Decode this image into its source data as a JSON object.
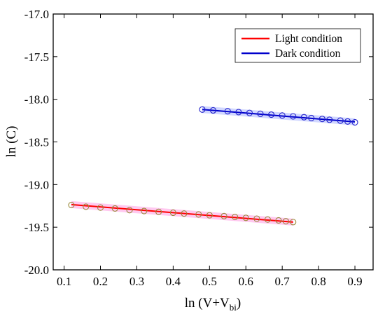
{
  "chart_data": {
    "type": "scatter",
    "title": "",
    "xlabel": "ln (V+V",
    "xlabel_sub": "bi",
    "xlabel_close": ")",
    "ylabel": "ln (C)",
    "xlim": [
      0.07,
      0.95
    ],
    "ylim": [
      -20.0,
      -17.0
    ],
    "xticks": [
      0.1,
      0.2,
      0.3,
      0.4,
      0.5,
      0.6,
      0.7,
      0.8,
      0.9
    ],
    "xtick_labels": [
      "0.1",
      "0.2",
      "0.3",
      "0.4",
      "0.5",
      "0.6",
      "0.7",
      "0.8",
      "0.9"
    ],
    "yticks": [
      -17.0,
      -17.5,
      -18.0,
      -18.5,
      -19.0,
      -19.5,
      -20.0
    ],
    "ytick_labels": [
      "-17.0",
      "-17.5",
      "-18.0",
      "-18.5",
      "-19.0",
      "-19.5",
      "-20.0"
    ],
    "grid": false,
    "legend_position": "top-right",
    "series": [
      {
        "name": "Light condition",
        "line_color": "#ff0000",
        "marker_color": "#9a8a3a",
        "band_color": "#ff88dd",
        "x": [
          0.12,
          0.16,
          0.2,
          0.24,
          0.28,
          0.32,
          0.36,
          0.4,
          0.43,
          0.47,
          0.5,
          0.54,
          0.57,
          0.6,
          0.63,
          0.66,
          0.69,
          0.71,
          0.73
        ],
        "y": [
          -19.24,
          -19.26,
          -19.27,
          -19.28,
          -19.3,
          -19.31,
          -19.32,
          -19.33,
          -19.34,
          -19.35,
          -19.36,
          -19.37,
          -19.38,
          -19.39,
          -19.4,
          -19.41,
          -19.42,
          -19.43,
          -19.44
        ],
        "fit": [
          [
            0.12,
            -19.235
          ],
          [
            0.73,
            -19.44
          ]
        ]
      },
      {
        "name": "Dark condition",
        "line_color": "#0000cc",
        "marker_color": "#2222cc",
        "band_color": "#9aa6ff",
        "x": [
          0.48,
          0.51,
          0.55,
          0.58,
          0.61,
          0.64,
          0.67,
          0.7,
          0.73,
          0.76,
          0.78,
          0.81,
          0.83,
          0.86,
          0.88,
          0.9
        ],
        "y": [
          -18.12,
          -18.13,
          -18.14,
          -18.15,
          -18.16,
          -18.17,
          -18.18,
          -18.19,
          -18.2,
          -18.21,
          -18.22,
          -18.23,
          -18.24,
          -18.25,
          -18.26,
          -18.27
        ],
        "fit": [
          [
            0.48,
            -18.12
          ],
          [
            0.9,
            -18.265
          ]
        ]
      }
    ]
  }
}
